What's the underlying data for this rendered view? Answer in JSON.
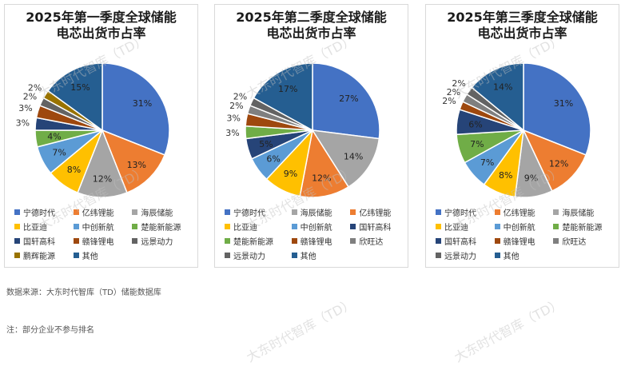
{
  "colors": {
    "宁德时代": "#4472C4",
    "亿纬锂能": "#ED7D31",
    "海辰储能": "#A5A5A5",
    "比亚迪": "#FFC000",
    "中创新航": "#5B9BD5",
    "楚能新能源": "#70AD47",
    "国轩高科": "#264478",
    "赣锋锂电": "#9E480E",
    "远景动力": "#636363",
    "鹏辉能源": "#997300",
    "其他": "#255E91",
    "欣旺达": "#7F7F7F"
  },
  "footer": {
    "source": "数据来源：大东时代智库（TD）储能数据库",
    "note": "注：部分企业不参与排名"
  },
  "watermark": "大东时代智库（TD）",
  "chart_data": [
    {
      "type": "pie",
      "title_line1": "2025年第一季度全球储能",
      "title_line2": "电芯出货市占率",
      "slices": [
        {
          "name": "宁德时代",
          "value": 31
        },
        {
          "name": "亿纬锂能",
          "value": 13
        },
        {
          "name": "海辰储能",
          "value": 12
        },
        {
          "name": "比亚迪",
          "value": 8
        },
        {
          "name": "中创新航",
          "value": 7
        },
        {
          "name": "楚能新能源",
          "value": 4
        },
        {
          "name": "国轩高科",
          "value": 3
        },
        {
          "name": "赣锋锂电",
          "value": 3
        },
        {
          "name": "远景动力",
          "value": 2
        },
        {
          "name": "鹏辉能源",
          "value": 2
        },
        {
          "name": "其他",
          "value": 15
        }
      ]
    },
    {
      "type": "pie",
      "title_line1": "2025年第二季度全球储能",
      "title_line2": "电芯出货市占率",
      "slices": [
        {
          "name": "宁德时代",
          "value": 27
        },
        {
          "name": "海辰储能",
          "value": 14
        },
        {
          "name": "亿纬锂能",
          "value": 12
        },
        {
          "name": "比亚迪",
          "value": 9
        },
        {
          "name": "中创新航",
          "value": 6
        },
        {
          "name": "国轩高科",
          "value": 5
        },
        {
          "name": "楚能新能源",
          "value": 3
        },
        {
          "name": "赣锋锂电",
          "value": 3
        },
        {
          "name": "欣旺达",
          "value": 2
        },
        {
          "name": "远景动力",
          "value": 2
        },
        {
          "name": "其他",
          "value": 17
        }
      ]
    },
    {
      "type": "pie",
      "title_line1": "2025年第三季度全球储能",
      "title_line2": "电芯出货市占率",
      "slices": [
        {
          "name": "宁德时代",
          "value": 31
        },
        {
          "name": "亿纬锂能",
          "value": 12
        },
        {
          "name": "海辰储能",
          "value": 9
        },
        {
          "name": "比亚迪",
          "value": 8
        },
        {
          "name": "中创新航",
          "value": 7
        },
        {
          "name": "楚能新能源",
          "value": 7
        },
        {
          "name": "国轩高科",
          "value": 6
        },
        {
          "name": "赣锋锂电",
          "value": 2
        },
        {
          "name": "欣旺达",
          "value": 2
        },
        {
          "name": "远景动力",
          "value": 2
        },
        {
          "name": "其他",
          "value": 14
        }
      ]
    }
  ]
}
